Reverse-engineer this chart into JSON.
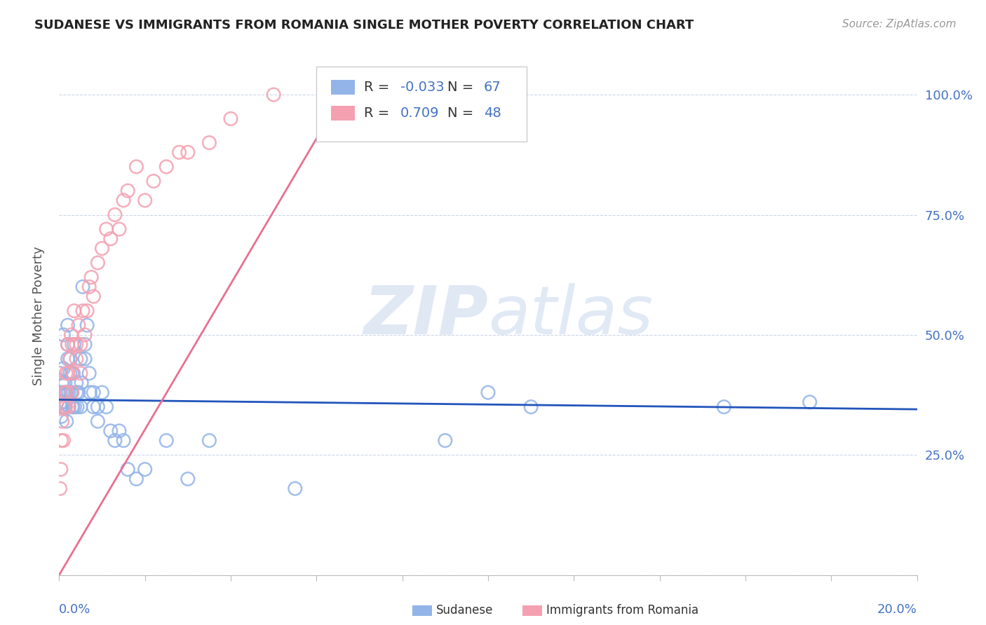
{
  "title": "SUDANESE VS IMMIGRANTS FROM ROMANIA SINGLE MOTHER POVERTY CORRELATION CHART",
  "source": "Source: ZipAtlas.com",
  "ylabel": "Single Mother Poverty",
  "y_ticks": [
    0.0,
    0.25,
    0.5,
    0.75,
    1.0
  ],
  "y_tick_labels": [
    "",
    "25.0%",
    "50.0%",
    "75.0%",
    "100.0%"
  ],
  "xlim": [
    0.0,
    0.2
  ],
  "ylim": [
    0.0,
    1.08
  ],
  "sudanese_color": "#92b4e8",
  "romania_color": "#f4a0b0",
  "sudanese_line_color": "#2255bb",
  "romania_line_color": "#e87090",
  "sudanese_R": -0.033,
  "sudanese_N": 67,
  "romania_R": 0.709,
  "romania_N": 48,
  "watermark_zip": "ZIP",
  "watermark_atlas": "atlas",
  "sudanese_x": [
    0.0002,
    0.0003,
    0.0004,
    0.0005,
    0.0006,
    0.0007,
    0.0008,
    0.0009,
    0.001,
    0.001,
    0.0012,
    0.0013,
    0.0014,
    0.0015,
    0.0016,
    0.0017,
    0.0018,
    0.002,
    0.002,
    0.002,
    0.0022,
    0.0023,
    0.0025,
    0.0026,
    0.0027,
    0.003,
    0.003,
    0.003,
    0.0032,
    0.0033,
    0.0035,
    0.0036,
    0.004,
    0.004,
    0.0042,
    0.0045,
    0.005,
    0.005,
    0.0052,
    0.0055,
    0.006,
    0.006,
    0.0065,
    0.007,
    0.0072,
    0.008,
    0.008,
    0.009,
    0.009,
    0.01,
    0.011,
    0.012,
    0.013,
    0.014,
    0.015,
    0.016,
    0.018,
    0.02,
    0.025,
    0.03,
    0.035,
    0.055,
    0.09,
    0.1,
    0.11,
    0.155,
    0.175
  ],
  "sudanese_y": [
    0.42,
    0.38,
    0.35,
    0.33,
    0.4,
    0.36,
    0.38,
    0.35,
    0.43,
    0.5,
    0.35,
    0.38,
    0.4,
    0.36,
    0.38,
    0.32,
    0.38,
    0.45,
    0.48,
    0.52,
    0.38,
    0.35,
    0.42,
    0.45,
    0.38,
    0.42,
    0.35,
    0.38,
    0.35,
    0.42,
    0.48,
    0.35,
    0.4,
    0.38,
    0.35,
    0.38,
    0.45,
    0.35,
    0.4,
    0.6,
    0.45,
    0.48,
    0.52,
    0.42,
    0.38,
    0.35,
    0.38,
    0.35,
    0.32,
    0.38,
    0.35,
    0.3,
    0.28,
    0.3,
    0.28,
    0.22,
    0.2,
    0.22,
    0.28,
    0.2,
    0.28,
    0.18,
    0.28,
    0.38,
    0.35,
    0.35,
    0.36
  ],
  "romania_x": [
    0.0002,
    0.0004,
    0.0005,
    0.0007,
    0.001,
    0.001,
    0.0012,
    0.0015,
    0.0016,
    0.0018,
    0.002,
    0.002,
    0.0022,
    0.0025,
    0.0028,
    0.003,
    0.003,
    0.0032,
    0.0035,
    0.004,
    0.004,
    0.0045,
    0.005,
    0.005,
    0.0055,
    0.006,
    0.0065,
    0.007,
    0.0075,
    0.008,
    0.009,
    0.01,
    0.011,
    0.012,
    0.013,
    0.014,
    0.015,
    0.016,
    0.018,
    0.02,
    0.022,
    0.025,
    0.028,
    0.03,
    0.035,
    0.04,
    0.05,
    0.065
  ],
  "romania_y": [
    0.18,
    0.22,
    0.28,
    0.32,
    0.35,
    0.28,
    0.38,
    0.35,
    0.42,
    0.38,
    0.42,
    0.48,
    0.35,
    0.45,
    0.5,
    0.38,
    0.48,
    0.42,
    0.55,
    0.45,
    0.48,
    0.52,
    0.48,
    0.42,
    0.55,
    0.5,
    0.55,
    0.6,
    0.62,
    0.58,
    0.65,
    0.68,
    0.72,
    0.7,
    0.75,
    0.72,
    0.78,
    0.8,
    0.85,
    0.78,
    0.82,
    0.85,
    0.88,
    0.88,
    0.9,
    0.95,
    1.0,
    0.98
  ]
}
